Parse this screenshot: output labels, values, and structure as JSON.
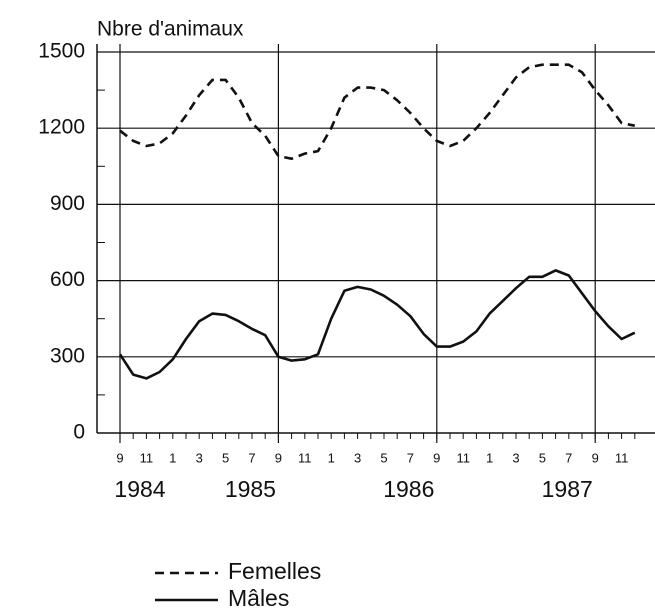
{
  "chart_data": {
    "type": "line",
    "y_label": "Nbre d'animaux",
    "categories": [
      "9",
      null,
      "11",
      null,
      "1",
      null,
      "3",
      null,
      "5",
      null,
      "7",
      null,
      "9",
      null,
      "11",
      null,
      "1",
      null,
      "3",
      null,
      "5",
      null,
      "7",
      null,
      "9",
      null,
      "11",
      null,
      "1",
      null,
      "3",
      null,
      "5",
      null,
      "7",
      null,
      "9",
      null,
      "11",
      null
    ],
    "years": [
      "1984",
      "1985",
      "1986",
      "1987"
    ],
    "series": [
      {
        "name": "Femelles",
        "color": "#111111",
        "dashed": true,
        "values": [
          1190,
          1150,
          1130,
          1140,
          1180,
          1250,
          1330,
          1390,
          1390,
          1320,
          1220,
          1170,
          1090,
          1080,
          1100,
          1110,
          1200,
          1320,
          1360,
          1360,
          1350,
          1310,
          1260,
          1200,
          1150,
          1130,
          1150,
          1200,
          1260,
          1330,
          1400,
          1440,
          1450,
          1450,
          1450,
          1420,
          1350,
          1290,
          1220,
          1210
        ]
      },
      {
        "name": "Mâles",
        "color": "#111111",
        "dashed": false,
        "values": [
          310,
          230,
          215,
          240,
          290,
          370,
          440,
          470,
          465,
          440,
          410,
          385,
          300,
          285,
          290,
          310,
          450,
          560,
          575,
          565,
          540,
          505,
          460,
          390,
          340,
          340,
          360,
          400,
          470,
          520,
          570,
          615,
          615,
          640,
          620,
          550,
          480,
          420,
          370,
          395
        ]
      }
    ],
    "ylim": [
      0,
      1500
    ],
    "yticks": [
      0,
      300,
      600,
      900,
      1200,
      1500
    ],
    "grid": true
  }
}
